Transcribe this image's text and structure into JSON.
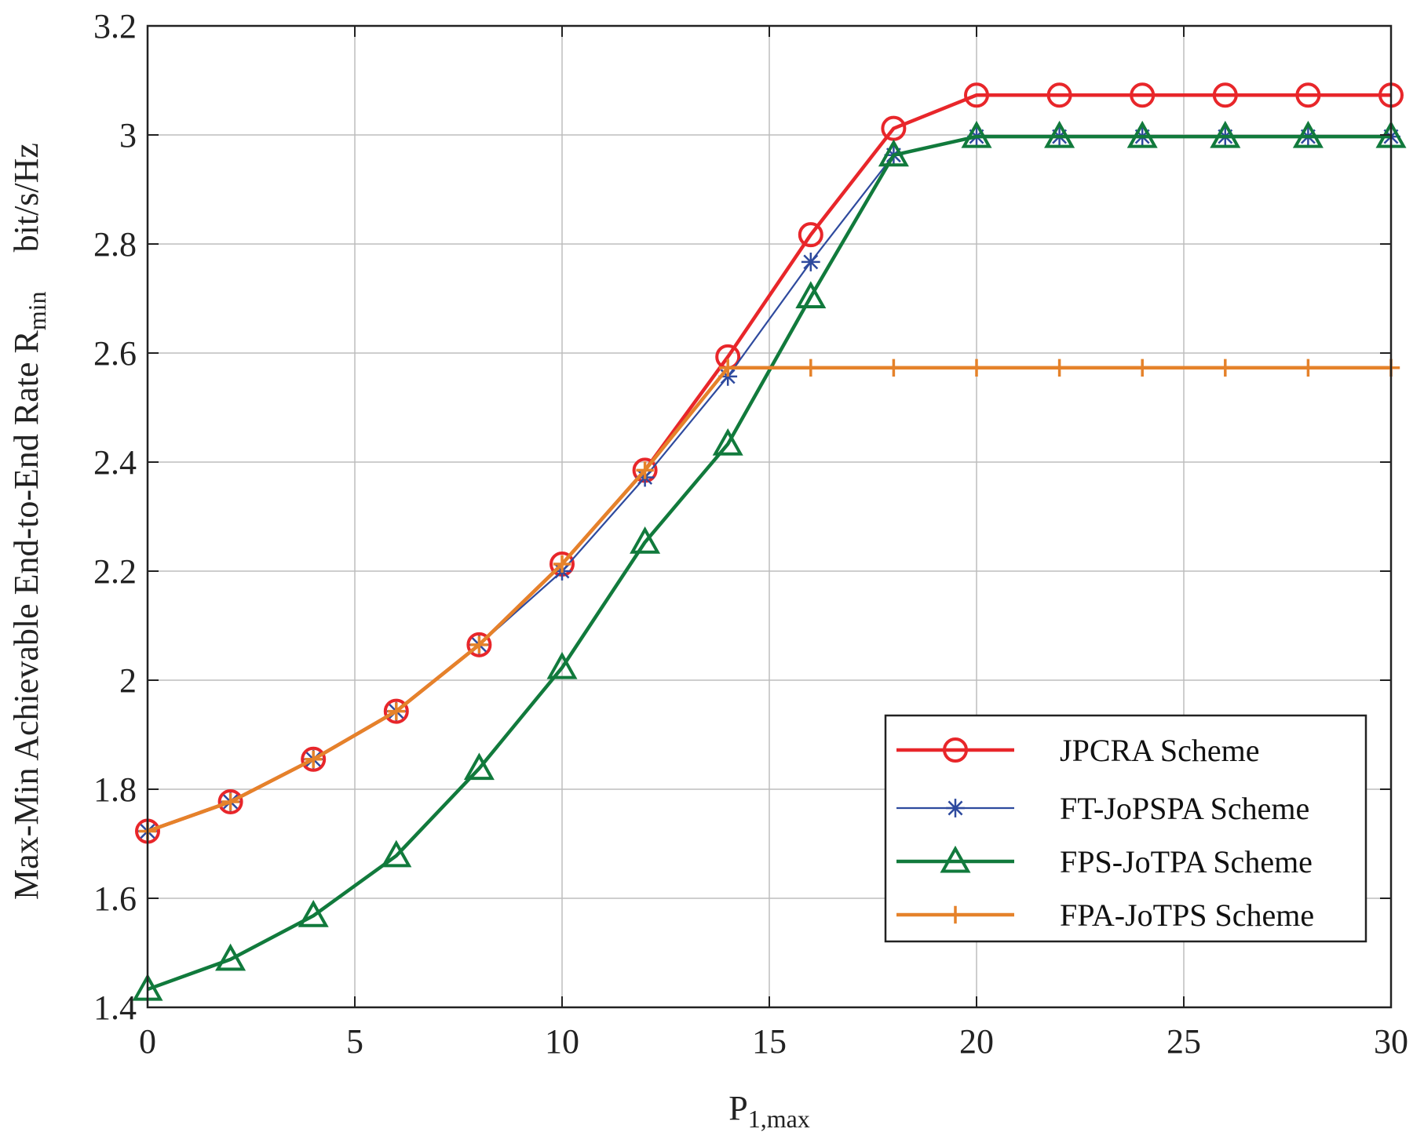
{
  "chart_data": {
    "type": "line",
    "title": "",
    "xlabel": {
      "main": "P",
      "sub": "1,max"
    },
    "ylabel": {
      "main": "Max-Min Achievable End-to-End Rate R",
      "sub": "min",
      "unit": "bit/s/Hz"
    },
    "xlim": [
      0,
      30
    ],
    "ylim": [
      1.4,
      3.2
    ],
    "xticks": [
      0,
      5,
      10,
      15,
      20,
      25,
      30
    ],
    "xtick_labels": [
      "0",
      "5",
      "10",
      "15",
      "20",
      "25",
      "30"
    ],
    "yticks": [
      1.4,
      1.6,
      1.8,
      2.0,
      2.2,
      2.4,
      2.6,
      2.8,
      3.0,
      3.2
    ],
    "ytick_labels": [
      "1.4",
      "1.6",
      "1.8",
      "2",
      "2.2",
      "2.4",
      "2.6",
      "2.8",
      "3",
      "3.2"
    ],
    "grid": true,
    "legend_position": "bottom-right",
    "series": [
      {
        "name": "JPCRA Scheme",
        "color": "#e8262a",
        "marker": "circle",
        "x": [
          0,
          2,
          4,
          6,
          8,
          10,
          12,
          14,
          16,
          18,
          20,
          22,
          24,
          26,
          28,
          30
        ],
        "values": [
          1.723,
          1.777,
          1.855,
          1.943,
          2.065,
          2.213,
          2.385,
          2.593,
          2.817,
          3.012,
          3.073,
          3.073,
          3.073,
          3.073,
          3.073,
          3.073
        ]
      },
      {
        "name": "FT-JoPSPA Scheme",
        "color": "#2e4a9e",
        "marker": "star",
        "x": [
          0,
          2,
          4,
          6,
          8,
          10,
          12,
          14,
          16,
          18,
          20,
          22,
          24,
          26,
          28,
          30
        ],
        "values": [
          1.723,
          1.777,
          1.855,
          1.943,
          2.065,
          2.2,
          2.372,
          2.557,
          2.767,
          2.963,
          2.997,
          2.997,
          2.997,
          2.997,
          2.997,
          2.997
        ]
      },
      {
        "name": "FPS-JoTPA Scheme",
        "color": "#117a3c",
        "marker": "triangle",
        "x": [
          0,
          2,
          4,
          6,
          8,
          10,
          12,
          14,
          16,
          18,
          20,
          22,
          24,
          26,
          28,
          30
        ],
        "values": [
          1.433,
          1.488,
          1.568,
          1.678,
          1.838,
          2.023,
          2.253,
          2.433,
          2.703,
          2.963,
          2.997,
          2.997,
          2.997,
          2.997,
          2.997,
          2.997
        ]
      },
      {
        "name": "FPA-JoTPS Scheme",
        "color": "#e5822a",
        "marker": "plus",
        "x": [
          0,
          2,
          4,
          6,
          8,
          10,
          12,
          14,
          16,
          18,
          20,
          22,
          24,
          26,
          28,
          30
        ],
        "values": [
          1.723,
          1.777,
          1.855,
          1.943,
          2.065,
          2.213,
          2.385,
          2.573,
          2.573,
          2.573,
          2.573,
          2.573,
          2.573,
          2.573,
          2.573,
          2.573
        ]
      }
    ]
  }
}
